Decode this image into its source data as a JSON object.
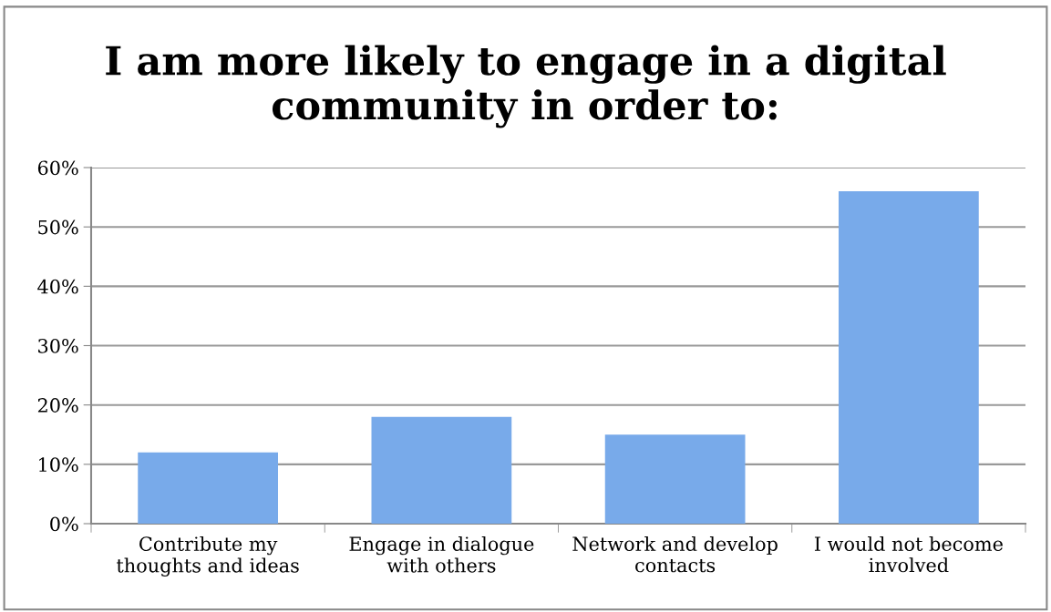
{
  "chart_data": {
    "type": "bar",
    "title": "I am more likely to engage in a digital\ncommunity in order to:",
    "categories": [
      "Contribute my\nthoughts and ideas",
      "Engage in dialogue\nwith others",
      "Network and develop\ncontacts",
      "I would not become\ninvolved"
    ],
    "values": [
      12,
      18,
      15,
      56
    ],
    "color": "#78aaea",
    "ylim": [
      0,
      60
    ],
    "yticks": [
      {
        "value": 0,
        "label": "0%"
      },
      {
        "value": 10,
        "label": "10%"
      },
      {
        "value": 20,
        "label": "20%"
      },
      {
        "value": 30,
        "label": "30%"
      },
      {
        "value": 40,
        "label": "40%"
      },
      {
        "value": 50,
        "label": "50%"
      },
      {
        "value": 60,
        "label": "60%"
      }
    ],
    "grid": "y",
    "legend": false
  }
}
